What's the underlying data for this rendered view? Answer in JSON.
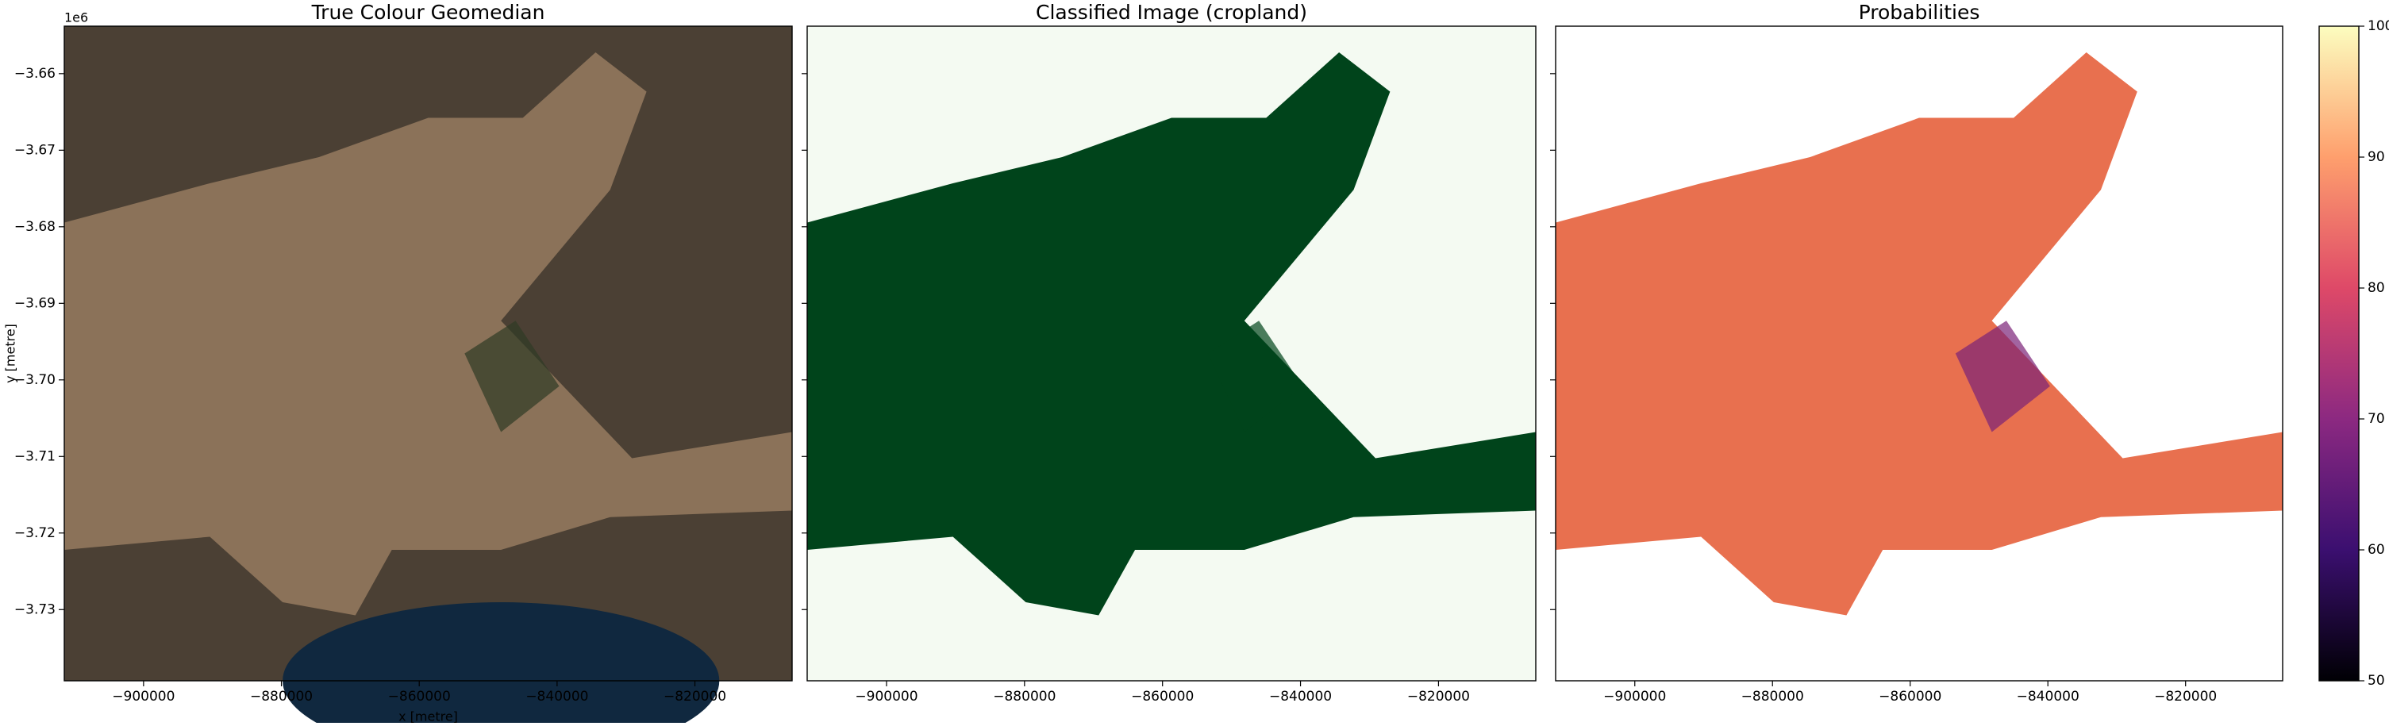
{
  "chart_data": [
    {
      "type": "image",
      "title": "True Colour Geomedian",
      "xlabel": "x [metre]",
      "ylabel": "y [metre]",
      "y_offset_text": "1e6",
      "xlim": [
        -911500,
        -805900
      ],
      "ylim": [
        -3739300,
        -3653800
      ],
      "xticks": [
        {
          "value": -900000,
          "label": "−900000"
        },
        {
          "value": -880000,
          "label": "−880000"
        },
        {
          "value": -860000,
          "label": "−860000"
        },
        {
          "value": -840000,
          "label": "−840000"
        },
        {
          "value": -820000,
          "label": "−820000"
        }
      ],
      "yticks": [
        {
          "value": -3660000,
          "label": "−3.66"
        },
        {
          "value": -3670000,
          "label": "−3.67"
        },
        {
          "value": -3680000,
          "label": "−3.68"
        },
        {
          "value": -3690000,
          "label": "−3.69"
        },
        {
          "value": -3700000,
          "label": "−3.70"
        },
        {
          "value": -3710000,
          "label": "−3.71"
        },
        {
          "value": -3720000,
          "label": "−3.72"
        },
        {
          "value": -3730000,
          "label": "−3.73"
        }
      ]
    },
    {
      "type": "image",
      "title": "Classified Image (cropland)",
      "xlim": [
        -911500,
        -805900
      ],
      "ylim": [
        -3739300,
        -3653800
      ],
      "xticks": [
        {
          "value": -900000,
          "label": "−900000"
        },
        {
          "value": -880000,
          "label": "−880000"
        },
        {
          "value": -860000,
          "label": "−860000"
        },
        {
          "value": -840000,
          "label": "−840000"
        },
        {
          "value": -820000,
          "label": "−820000"
        }
      ],
      "yticks": [
        -3660000,
        -3670000,
        -3680000,
        -3690000,
        -3700000,
        -3710000,
        -3720000,
        -3730000
      ]
    },
    {
      "type": "image",
      "title": "Probabilities",
      "xlim": [
        -911500,
        -805900
      ],
      "ylim": [
        -3739300,
        -3653800
      ],
      "xticks": [
        {
          "value": -900000,
          "label": "−900000"
        },
        {
          "value": -880000,
          "label": "−880000"
        },
        {
          "value": -860000,
          "label": "−860000"
        },
        {
          "value": -840000,
          "label": "−840000"
        },
        {
          "value": -820000,
          "label": "−820000"
        }
      ],
      "yticks": [
        -3660000,
        -3670000,
        -3680000,
        -3690000,
        -3700000,
        -3710000,
        -3720000,
        -3730000
      ],
      "colorbar": {
        "ylim": [
          50,
          100
        ],
        "yticks": [
          50,
          60,
          70,
          80,
          90,
          100
        ],
        "colors": [
          "#000004",
          "#3b0f70",
          "#8c2981",
          "#de4968",
          "#fe9f6d",
          "#fcfdbf"
        ]
      }
    }
  ]
}
